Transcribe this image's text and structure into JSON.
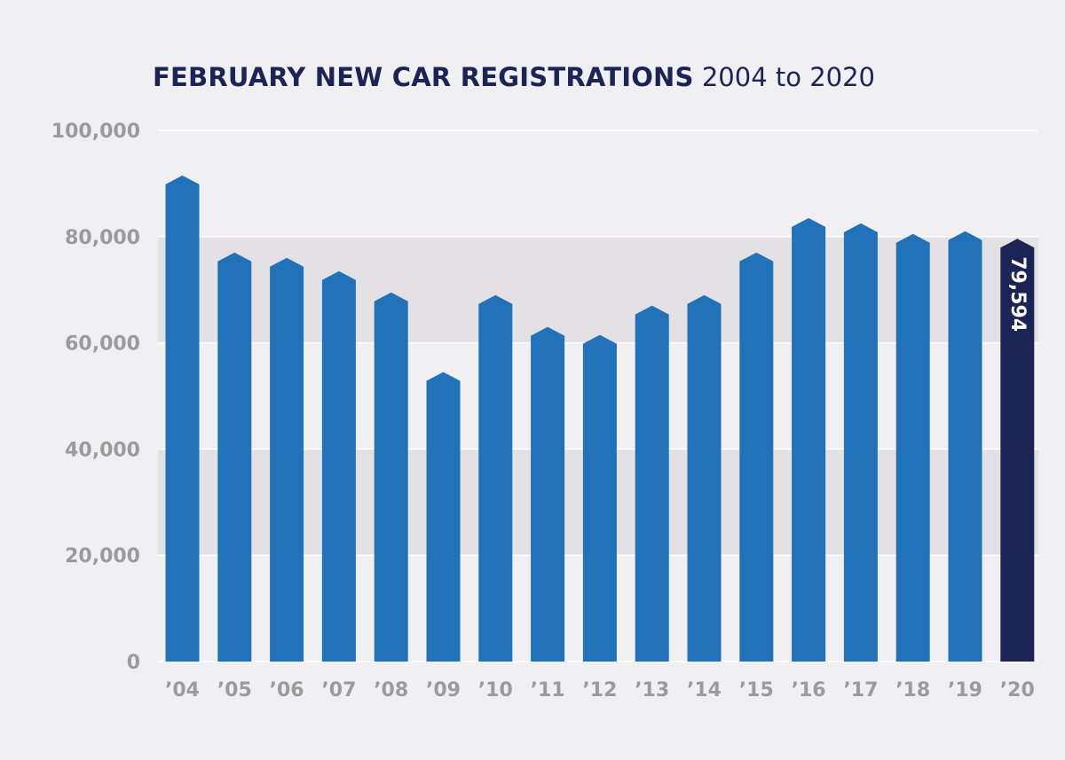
{
  "chart_data": {
    "type": "bar",
    "title": "FEBRUARY NEW CAR REGISTRATIONS",
    "subtitle": "2004 to 2020",
    "categories": [
      "’04",
      "’05",
      "’06",
      "’07",
      "’08",
      "’09",
      "’10",
      "’11",
      "’12",
      "’13",
      "’14",
      "’15",
      "’16",
      "’17",
      "’18",
      "’19",
      "’20"
    ],
    "values": [
      91500,
      77000,
      76000,
      73500,
      69500,
      54500,
      69000,
      63000,
      61500,
      67000,
      69000,
      77000,
      83500,
      82500,
      80500,
      81000,
      79594
    ],
    "ylim": [
      0,
      100000
    ],
    "yticks": [
      0,
      20000,
      40000,
      60000,
      80000,
      100000
    ],
    "ytick_labels": [
      "0",
      "20,000",
      "40,000",
      "60,000",
      "80,000",
      "100,000"
    ],
    "xlabel": "",
    "ylabel": "",
    "grid": true,
    "highlight_index": 16,
    "data_label": "79,594",
    "colors": {
      "bar": "#2272b9",
      "highlight": "#1c2456",
      "band": "#e3e1e4",
      "gridline": "#ffffff",
      "tick_text": "#9b9b9b",
      "title": "#1c2456",
      "background": "#f0f0f2"
    }
  }
}
